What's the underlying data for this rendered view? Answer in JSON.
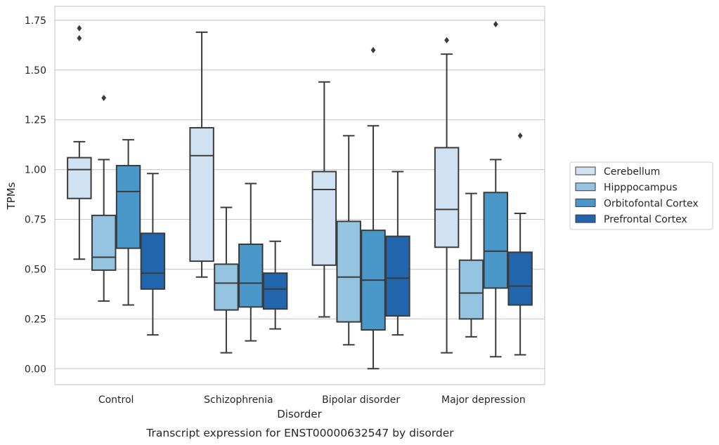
{
  "chart_data": {
    "type": "boxplot",
    "caption": "Transcript expression for ENST00000632547 by disorder",
    "xlabel": "Disorder",
    "ylabel": "TPMs",
    "ylim": [
      -0.08,
      1.82
    ],
    "yticks": [
      "0.00",
      "0.25",
      "0.50",
      "0.75",
      "1.00",
      "1.25",
      "1.50",
      "1.75"
    ],
    "ytick_values": [
      0,
      0.25,
      0.5,
      0.75,
      1.0,
      1.25,
      1.5,
      1.75
    ],
    "grid": "horizontal",
    "legend_position": "right",
    "categories": [
      "Control",
      "Schizophrenia",
      "Bipolar disorder",
      "Major depression"
    ],
    "series": [
      {
        "name": "Cerebellum",
        "color": "#d0e1f2",
        "boxes": [
          {
            "whislo": 0.55,
            "q1": 0.855,
            "med": 1.0,
            "q3": 1.06,
            "whishi": 1.14,
            "fliers": [
              1.66,
              1.71
            ]
          },
          {
            "whislo": 0.46,
            "q1": 0.54,
            "med": 1.07,
            "q3": 1.21,
            "whishi": 1.69,
            "fliers": []
          },
          {
            "whislo": 0.26,
            "q1": 0.52,
            "med": 0.9,
            "q3": 0.99,
            "whishi": 1.44,
            "fliers": []
          },
          {
            "whislo": 0.08,
            "q1": 0.61,
            "med": 0.8,
            "q3": 1.11,
            "whishi": 1.58,
            "fliers": [
              1.65
            ]
          }
        ]
      },
      {
        "name": "Hipppocampus",
        "color": "#94c4df",
        "boxes": [
          {
            "whislo": 0.34,
            "q1": 0.495,
            "med": 0.56,
            "q3": 0.77,
            "whishi": 1.05,
            "fliers": [
              1.36
            ]
          },
          {
            "whislo": 0.08,
            "q1": 0.295,
            "med": 0.43,
            "q3": 0.525,
            "whishi": 0.81,
            "fliers": []
          },
          {
            "whislo": 0.12,
            "q1": 0.235,
            "med": 0.46,
            "q3": 0.74,
            "whishi": 1.17,
            "fliers": []
          },
          {
            "whislo": 0.16,
            "q1": 0.25,
            "med": 0.38,
            "q3": 0.545,
            "whishi": 0.88,
            "fliers": []
          }
        ]
      },
      {
        "name": "Orbitofontal Cortex",
        "color": "#4a98c9",
        "boxes": [
          {
            "whislo": 0.32,
            "q1": 0.605,
            "med": 0.89,
            "q3": 1.02,
            "whishi": 1.15,
            "fliers": []
          },
          {
            "whislo": 0.14,
            "q1": 0.31,
            "med": 0.43,
            "q3": 0.625,
            "whishi": 0.93,
            "fliers": []
          },
          {
            "whislo": 0.0,
            "q1": 0.195,
            "med": 0.445,
            "q3": 0.695,
            "whishi": 1.22,
            "fliers": [
              1.6
            ]
          },
          {
            "whislo": 0.06,
            "q1": 0.405,
            "med": 0.59,
            "q3": 0.885,
            "whishi": 1.05,
            "fliers": [
              1.73
            ]
          }
        ]
      },
      {
        "name": "Prefrontal Cortex",
        "color": "#2166ac",
        "boxes": [
          {
            "whislo": 0.17,
            "q1": 0.4,
            "med": 0.48,
            "q3": 0.68,
            "whishi": 0.98,
            "fliers": []
          },
          {
            "whislo": 0.2,
            "q1": 0.3,
            "med": 0.4,
            "q3": 0.48,
            "whishi": 0.64,
            "fliers": []
          },
          {
            "whislo": 0.17,
            "q1": 0.265,
            "med": 0.455,
            "q3": 0.665,
            "whishi": 0.99,
            "fliers": []
          },
          {
            "whislo": 0.07,
            "q1": 0.32,
            "med": 0.415,
            "q3": 0.585,
            "whishi": 0.78,
            "fliers": [
              1.17
            ]
          }
        ]
      }
    ]
  }
}
